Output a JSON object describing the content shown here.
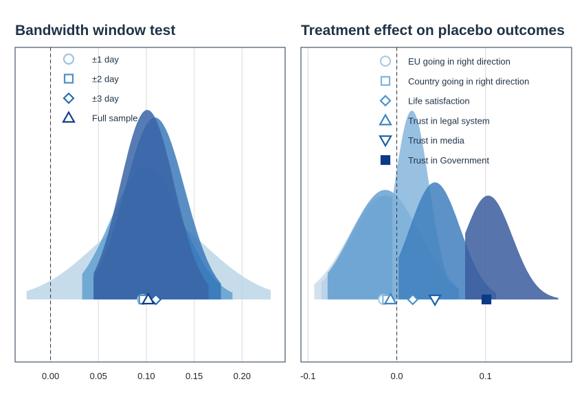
{
  "chart_data": [
    {
      "type": "ridgeline-density",
      "title": "Bandwidth window test",
      "xlabel": "",
      "ylabel": "",
      "xlim": [
        -0.037,
        0.245
      ],
      "xticks": [
        0.0,
        0.05,
        0.1,
        0.15,
        0.2
      ],
      "xtick_labels": [
        "0.00",
        "0.05",
        "0.10",
        "0.15",
        "0.20"
      ],
      "grid": true,
      "reference_line": {
        "x": 0.0,
        "style": "dashed"
      },
      "legend": "top-left",
      "series": [
        {
          "name": "±1 day",
          "marker": "circle-open",
          "point": 0.096,
          "ci": [
            -0.025,
            0.23
          ],
          "density_peak_x": 0.104,
          "relative_height": 0.45,
          "color": "#b7d2e6",
          "marker_color": "#9cc3e0"
        },
        {
          "name": "±2 day",
          "marker": "square-open",
          "point": 0.097,
          "ci": [
            0.033,
            0.19
          ],
          "density_peak_x": 0.1,
          "relative_height": 0.7,
          "color": "#5b9ccf",
          "marker_color": "#4d8fc6"
        },
        {
          "name": "±3 day",
          "marker": "diamond-open",
          "point": 0.11,
          "ci": [
            0.045,
            0.178
          ],
          "density_peak_x": 0.109,
          "relative_height": 0.96,
          "color": "#2f72b6",
          "marker_color": "#2a6aad"
        },
        {
          "name": "Full sample",
          "marker": "triangle-up-open",
          "point": 0.102,
          "ci": [
            0.045,
            0.165
          ],
          "density_peak_x": 0.101,
          "relative_height": 1.0,
          "color": "#3a64a6",
          "marker_color": "#123f82"
        }
      ]
    },
    {
      "type": "ridgeline-density",
      "title": "Treatment effect on placebo outcomes",
      "xlabel": "",
      "ylabel": "",
      "xlim": [
        -0.108,
        0.197
      ],
      "xticks": [
        -0.1,
        0.0,
        0.1
      ],
      "xtick_labels": [
        "-0.1",
        "0.0",
        "0.1"
      ],
      "grid": true,
      "reference_line": {
        "x": 0.0,
        "style": "dashed"
      },
      "legend": "top-center",
      "series": [
        {
          "name": "EU going in right direction",
          "marker": "circle-open",
          "point": -0.015,
          "ci": [
            -0.093,
            0.06
          ],
          "density_peak_x": -0.015,
          "relative_height": 0.55,
          "color": "#c6d9ea",
          "marker_color": "#a8cde6"
        },
        {
          "name": "Country going in right direction",
          "marker": "square-open",
          "point": -0.011,
          "ci": [
            -0.085,
            0.065
          ],
          "density_peak_x": -0.011,
          "relative_height": 0.55,
          "color": "#b6d0e8",
          "marker_color": "#7cb5dc"
        },
        {
          "name": "Life satisfaction",
          "marker": "diamond-open",
          "point": 0.018,
          "ci": [
            -0.078,
            0.07
          ],
          "density_peak_x": -0.013,
          "relative_height": 0.58,
          "color": "#5d9bcd",
          "marker_color": "#4a91c8"
        },
        {
          "name": "Trust in legal system",
          "marker": "triangle-up-open",
          "point": -0.007,
          "ci": [
            -0.005,
            0.07
          ],
          "density_peak_x": 0.017,
          "relative_height": 1.0,
          "color": "#85b5dc",
          "marker_color": "#3d86c0"
        },
        {
          "name": "Trust in media",
          "marker": "triangle-down-open",
          "point": 0.043,
          "ci": [
            0.002,
            0.112
          ],
          "density_peak_x": 0.043,
          "relative_height": 0.62,
          "color": "#3f7fbd",
          "marker_color": "#1b5fa6"
        },
        {
          "name": "Trust in Government",
          "marker": "square-filled",
          "point": 0.101,
          "ci": [
            0.077,
            0.182
          ],
          "density_peak_x": 0.103,
          "relative_height": 0.55,
          "color": "#3b5c9d",
          "marker_color": "#0b3a86"
        }
      ]
    }
  ]
}
